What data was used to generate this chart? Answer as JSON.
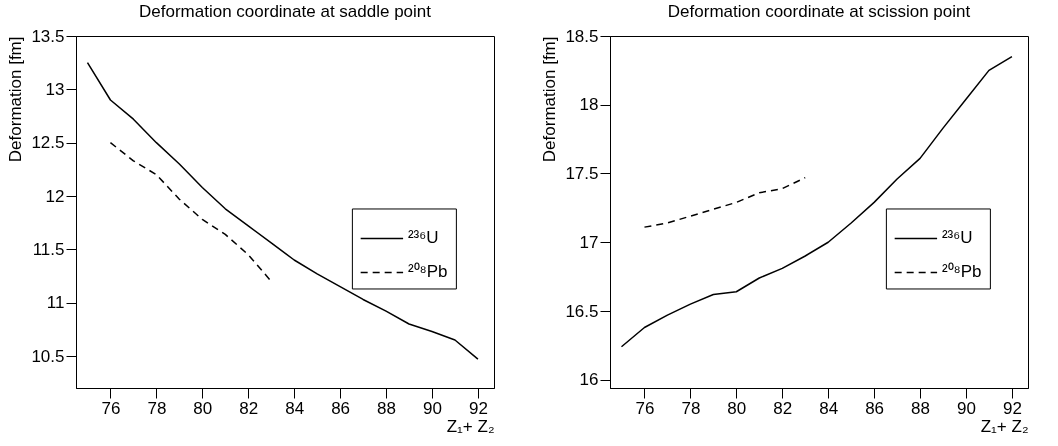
{
  "chart_data": [
    {
      "type": "line",
      "title": "Deformation coordinate at saddle point",
      "xlabel": "Z₁+ Z₂",
      "ylabel": "Deformation [fm]",
      "xlim": [
        74.5,
        92.7
      ],
      "ylim": [
        10.2,
        13.5
      ],
      "xticks": [
        76,
        78,
        80,
        82,
        84,
        86,
        88,
        90,
        92
      ],
      "yticks": [
        10.5,
        11,
        11.5,
        12,
        12.5,
        13,
        13.5
      ],
      "grid": false,
      "legend": "right",
      "series": [
        {
          "name": "²³⁶U",
          "color": "#000000",
          "line_style": "solid",
          "x": [
            75,
            76,
            77,
            78,
            79,
            80,
            81,
            82,
            83,
            84,
            85,
            86,
            87,
            88,
            89,
            90,
            91,
            92
          ],
          "values": [
            13.25,
            12.9,
            12.72,
            12.5,
            12.3,
            12.08,
            11.88,
            11.72,
            11.56,
            11.4,
            11.27,
            11.15,
            11.03,
            10.92,
            10.8,
            10.73,
            10.65,
            10.47
          ]
        },
        {
          "name": "²⁰⁸Pb",
          "color": "#000000",
          "line_style": "dashed",
          "x": [
            76,
            77,
            78,
            79,
            80,
            81,
            82,
            83
          ],
          "values": [
            12.5,
            12.33,
            12.2,
            11.97,
            11.78,
            11.64,
            11.45,
            11.2
          ]
        }
      ]
    },
    {
      "type": "line",
      "title": "Deformation coordinate at scission point",
      "xlabel": "Z₁+ Z₂",
      "ylabel": "Deformation [fm]",
      "xlim": [
        74.5,
        92.7
      ],
      "ylim": [
        15.94,
        18.5
      ],
      "xticks": [
        76,
        78,
        80,
        82,
        84,
        86,
        88,
        90,
        92
      ],
      "yticks": [
        16,
        16.5,
        17,
        17.5,
        18,
        18.5
      ],
      "grid": false,
      "legend": "right",
      "series": [
        {
          "name": "²³⁶U",
          "color": "#000000",
          "line_style": "solid",
          "x": [
            75,
            76,
            77,
            78,
            79,
            80,
            81,
            82,
            83,
            84,
            85,
            86,
            87,
            88,
            89,
            90,
            91,
            92
          ],
          "values": [
            16.24,
            16.38,
            16.47,
            16.55,
            16.62,
            16.64,
            16.74,
            16.81,
            16.9,
            17.0,
            17.14,
            17.29,
            17.46,
            17.61,
            17.83,
            18.04,
            18.25,
            18.35
          ]
        },
        {
          "name": "²⁰⁸Pb",
          "color": "#000000",
          "line_style": "dashed",
          "x": [
            76,
            77,
            78,
            79,
            80,
            81,
            82,
            83
          ],
          "values": [
            17.11,
            17.14,
            17.19,
            17.24,
            17.29,
            17.36,
            17.39,
            17.47
          ]
        }
      ]
    }
  ]
}
